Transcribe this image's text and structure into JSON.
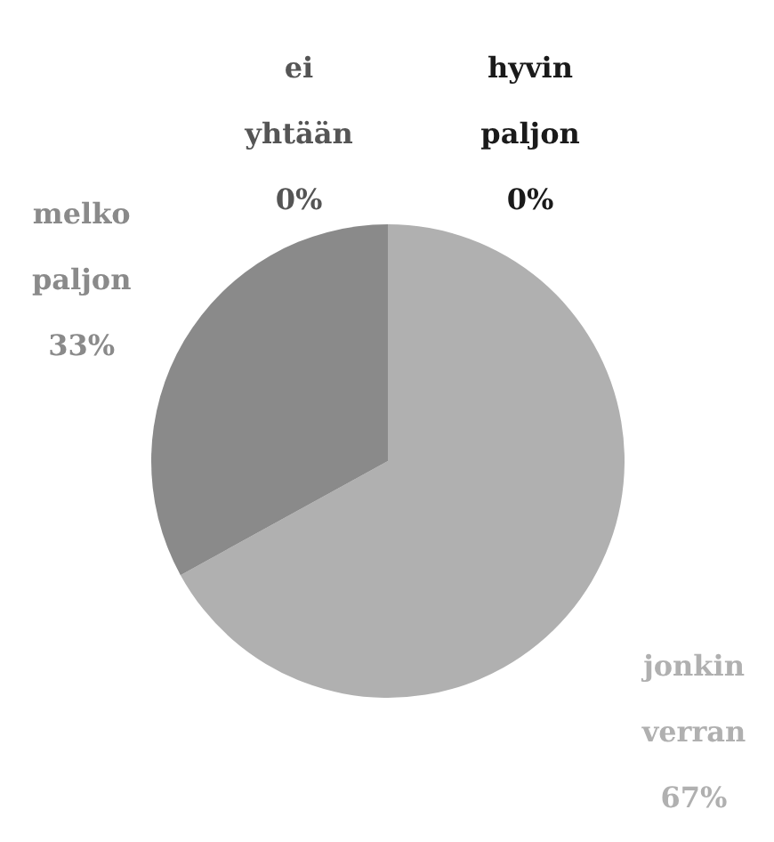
{
  "chart_data": {
    "type": "pie",
    "categories": [
      "hyvin paljon",
      "jonkin verran",
      "melko paljon",
      "ei yhtään"
    ],
    "values": [
      0,
      67,
      33,
      0
    ],
    "colors": [
      "#1a1a1a",
      "#b0b0b0",
      "#8a8a8a",
      "#555555"
    ],
    "value_labels": [
      "0%",
      "67%",
      "33%",
      "0%"
    ],
    "legend": false
  }
}
